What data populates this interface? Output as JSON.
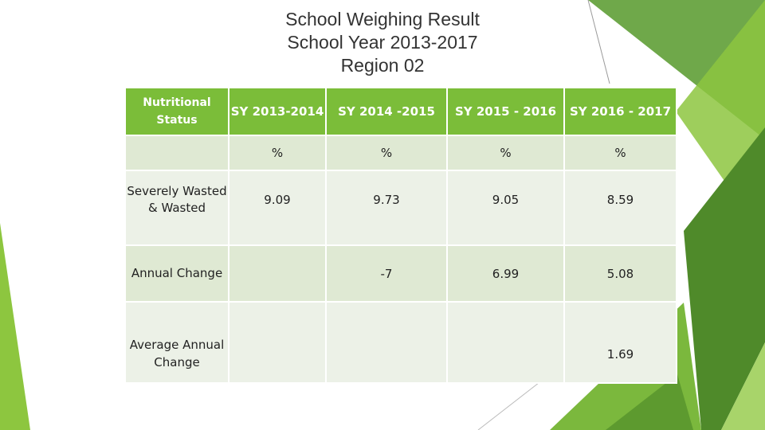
{
  "title": {
    "line1": "School Weighing Result",
    "line2": "School Year 2013-2017",
    "line3": "Region 02"
  },
  "table": {
    "headers": [
      "Nutritional Status",
      "SY 2013-2014",
      "SY 2014 -2015",
      "SY 2015 - 2016",
      "SY 2016 - 2017"
    ],
    "unit_row": [
      "",
      "%",
      "%",
      "%",
      "%"
    ],
    "rows": [
      {
        "label": "Severely Wasted & Wasted",
        "values": [
          "9.09",
          "9.73",
          "9.05",
          "8.59"
        ]
      },
      {
        "label": "Annual Change",
        "values": [
          "",
          "-7",
          "6.99",
          "5.08"
        ]
      },
      {
        "label": "Average Annual Change",
        "values": [
          "",
          "",
          "",
          "1.69"
        ]
      }
    ]
  },
  "colors": {
    "header_green": "#7bbd39",
    "row_light": "#ecf1e7",
    "row_mid": "#dfe9d3",
    "deco_dark_green": "#4f8a2a",
    "deco_light_green": "#8dc63f"
  }
}
